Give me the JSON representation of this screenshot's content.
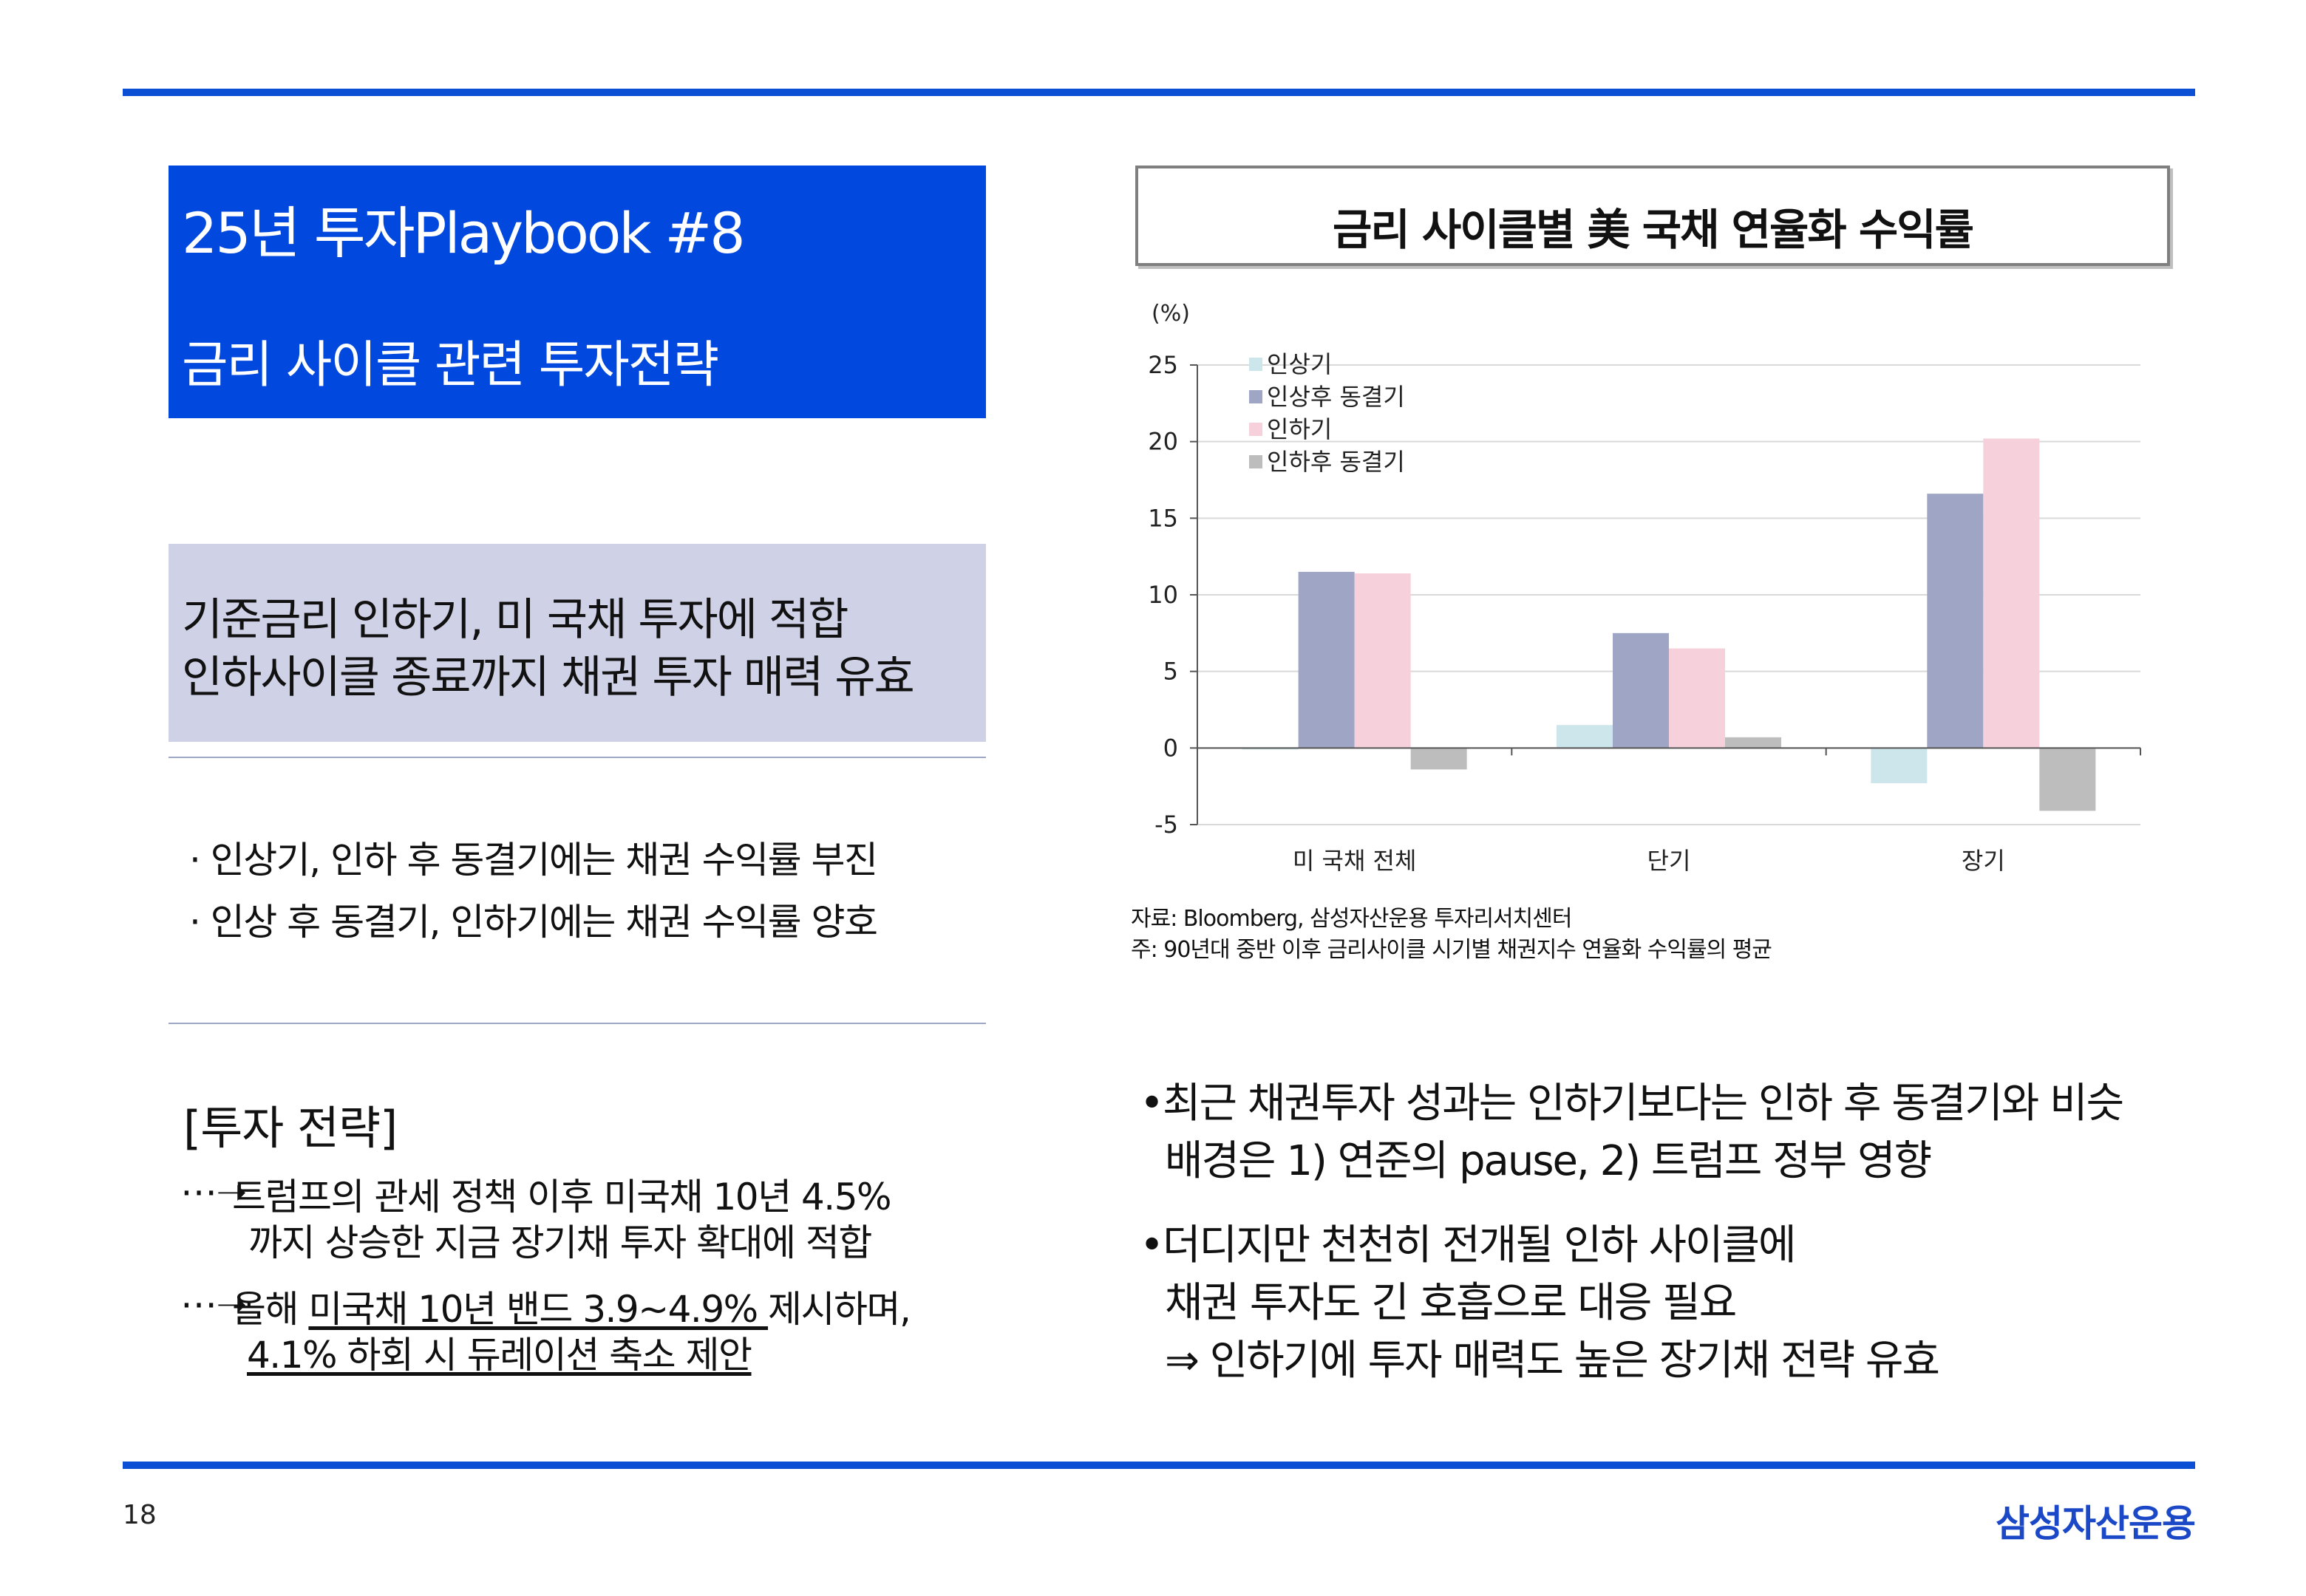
{
  "title": {
    "line1": "25년 투자Playbook #8",
    "line2": "금리 사이클 관련 투자전략"
  },
  "summary": {
    "line1": "기준금리 인하기, 미 국채 투자에 적합",
    "line2": "인하사이클 종료까지 채권 투자 매력 유효"
  },
  "points": [
    "· 인상기, 인하 후 동결기에는 채권 수익률 부진",
    "· 인상 후 동결기, 인하기에는 채권 수익률 양호"
  ],
  "strategy": {
    "title": "[투자 전략]",
    "arrow": "⋯➝",
    "item1_line1": "트럼프의 관세 정책 이후 미국채 10년 4.5%",
    "item1_line2": "까지 상승한 지금 장기채 투자 확대에 적합",
    "item2_prefix": "올해 ",
    "item2_underlined": "미국채 10년 밴드 3.9~4.9% ",
    "item2_suffix": "제시하며,",
    "item2_line2": "4.1% 하회 시 듀레이션 축소 제안"
  },
  "chart_data": {
    "type": "bar",
    "title": "금리 사이클별 美 국채 연율화 수익률",
    "ylabel": "(%)",
    "categories": [
      "미 국채 전체",
      "단기",
      "장기"
    ],
    "ylim": [
      -5,
      25
    ],
    "yticks": [
      -5,
      0,
      5,
      10,
      15,
      20,
      25
    ],
    "grid": true,
    "legend": "top-left",
    "series": [
      {
        "name": "인상기",
        "color": "#cde6ec",
        "values": [
          -0.1,
          1.5,
          -2.3
        ]
      },
      {
        "name": "인상후 동결기",
        "color": "#9ea5c5",
        "values": [
          11.5,
          7.5,
          16.6
        ]
      },
      {
        "name": "인하기",
        "color": "#f6d0da",
        "values": [
          11.4,
          6.5,
          20.2
        ]
      },
      {
        "name": "인하후 동결기",
        "color": "#bdbdbd",
        "values": [
          -1.4,
          0.7,
          -4.1
        ]
      }
    ]
  },
  "source": {
    "line1": "자료: Bloomberg, 삼성자산운용 투자리서치센터",
    "line2": "주: 90년대 중반 이후 금리사이클 시기별 채권지수 연율화 수익률의 평균"
  },
  "right_bullets": {
    "b1_line1": "•최근 채권투자 성과는 인하기보다는 인하 후 동결기와 비슷",
    "b1_line2": "배경은 1) 연준의 pause, 2) 트럼프 정부 영향",
    "b2_line1": "•더디지만 천천히 전개될 인하 사이클에",
    "b2_line2": "채권 투자도 긴 호흡으로 대응 필요",
    "b2_line3": "⇒ 인하기에 투자 매력도 높은 장기채 전략 유효"
  },
  "footer": {
    "page": "18",
    "logo": "삼성자산운용"
  },
  "colors": {
    "accent": "#0a4fd4",
    "title_bg": "#0048de",
    "summary_bg": "#cfd1e6"
  }
}
